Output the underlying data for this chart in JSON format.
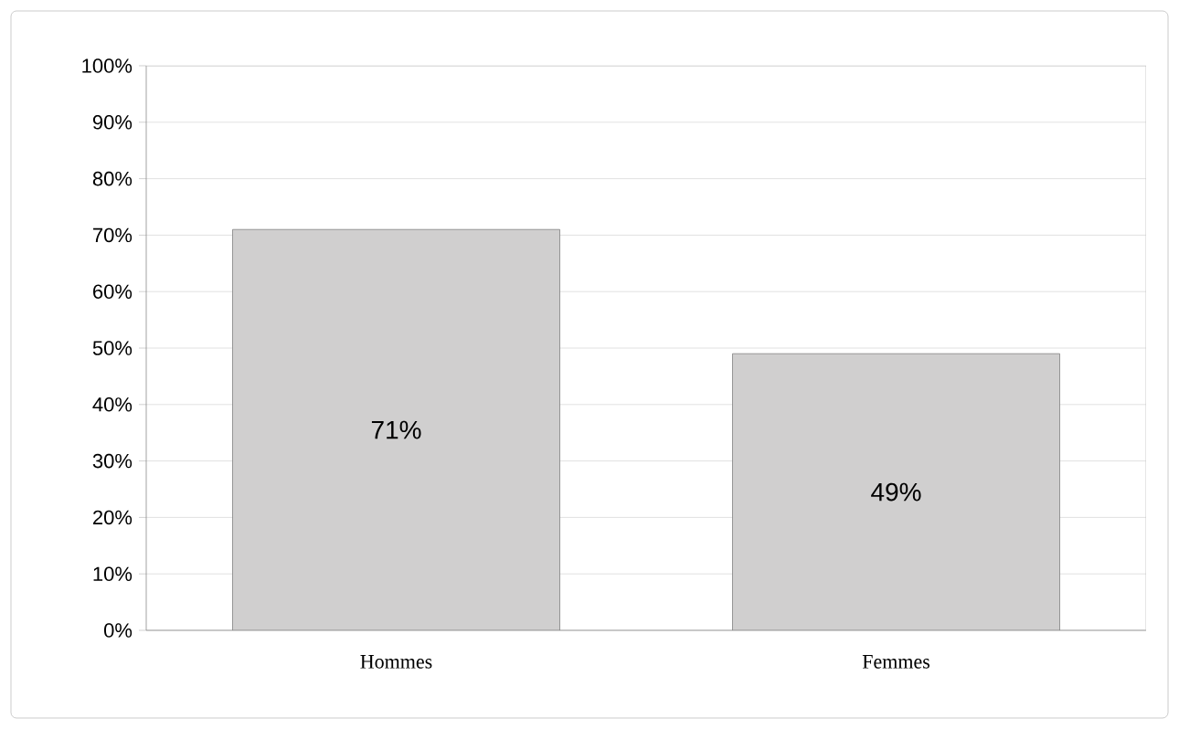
{
  "chart_data": {
    "type": "bar",
    "categories": [
      "Hommes",
      "Femmes"
    ],
    "values": [
      71,
      49
    ],
    "value_labels": [
      "71%",
      "49%"
    ],
    "color": "#d0cfcf",
    "ylim": [
      0,
      100
    ],
    "yticks": [
      {
        "value": 0,
        "label": "0%"
      },
      {
        "value": 10,
        "label": "10%"
      },
      {
        "value": 20,
        "label": "20%"
      },
      {
        "value": 30,
        "label": "30%"
      },
      {
        "value": 40,
        "label": "40%"
      },
      {
        "value": 50,
        "label": "50%"
      },
      {
        "value": 60,
        "label": "60%"
      },
      {
        "value": 70,
        "label": "70%"
      },
      {
        "value": 80,
        "label": "80%"
      },
      {
        "value": 90,
        "label": "90%"
      },
      {
        "value": 100,
        "label": "100%"
      }
    ],
    "grid": "y"
  }
}
